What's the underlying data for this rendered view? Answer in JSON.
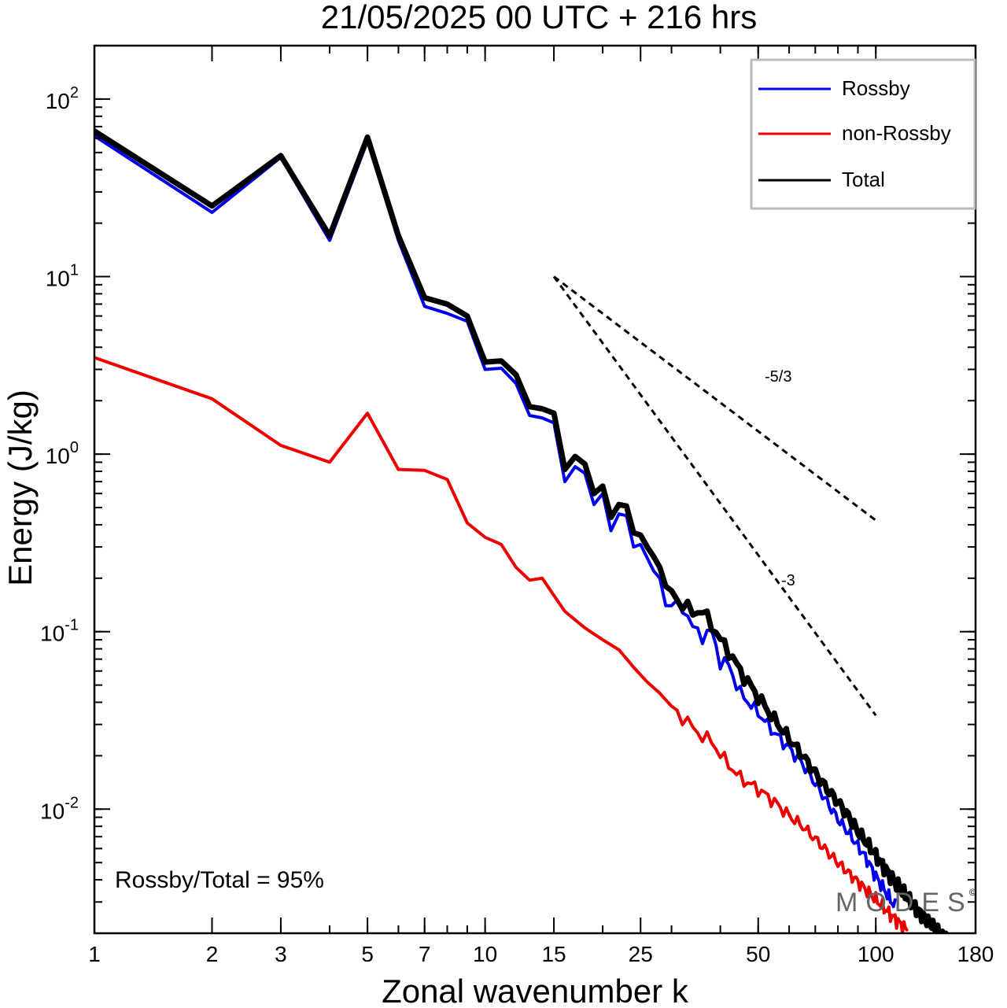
{
  "chart_data": {
    "type": "line",
    "title": "21/05/2025  00 UTC  + 216 hrs",
    "xlabel": "Zonal wavenumber k",
    "ylabel": "Energy (J/kg)",
    "xscale": "log",
    "yscale": "log",
    "xlim": [
      1,
      180
    ],
    "ylim": [
      0.002,
      200
    ],
    "xticks": [
      1,
      2,
      3,
      5,
      7,
      10,
      15,
      25,
      50,
      100,
      180
    ],
    "xtick_labels": [
      "1",
      "2",
      "3",
      "5",
      "7",
      "10",
      "15",
      "25",
      "50",
      "100",
      "180"
    ],
    "yticks": [
      {
        "value": 100,
        "base": "10",
        "exp": "2"
      },
      {
        "value": 10,
        "base": "10",
        "exp": "1"
      },
      {
        "value": 1,
        "base": "10",
        "exp": "0"
      },
      {
        "value": 0.1,
        "base": "10",
        "exp": "-1"
      },
      {
        "value": 0.01,
        "base": "10",
        "exp": "-2"
      }
    ],
    "legend_position": "top-right",
    "series": [
      {
        "name": "Rossby",
        "color": "#0000ee",
        "anchors": [
          [
            1,
            62
          ],
          [
            2,
            23
          ],
          [
            3,
            47
          ],
          [
            4,
            16
          ],
          [
            5,
            58
          ],
          [
            6,
            16
          ],
          [
            7,
            6.8
          ],
          [
            8,
            6.2
          ],
          [
            9,
            5.6
          ],
          [
            10,
            3.0
          ],
          [
            11,
            3.05
          ],
          [
            12,
            2.5
          ],
          [
            13,
            1.65
          ],
          [
            14,
            1.6
          ],
          [
            15,
            1.5
          ],
          [
            16,
            0.7
          ],
          [
            17,
            0.85
          ],
          [
            18,
            0.78
          ],
          [
            19,
            0.52
          ],
          [
            20,
            0.6
          ],
          [
            21,
            0.37
          ],
          [
            22,
            0.46
          ],
          [
            23,
            0.45
          ],
          [
            24,
            0.3
          ],
          [
            25,
            0.31
          ],
          [
            26,
            0.26
          ],
          [
            27,
            0.22
          ],
          [
            28,
            0.2
          ],
          [
            29,
            0.14
          ],
          [
            30,
            0.14
          ],
          [
            32,
            0.14
          ],
          [
            34,
            0.105
          ],
          [
            36,
            0.095
          ],
          [
            38,
            0.1
          ],
          [
            40,
            0.068
          ],
          [
            42,
            0.065
          ],
          [
            45,
            0.045
          ],
          [
            50,
            0.035
          ],
          [
            55,
            0.027
          ],
          [
            60,
            0.022
          ],
          [
            65,
            0.018
          ],
          [
            70,
            0.014
          ],
          [
            75,
            0.011
          ],
          [
            80,
            0.0088
          ],
          [
            85,
            0.0074
          ],
          [
            90,
            0.0062
          ],
          [
            95,
            0.0052
          ],
          [
            100,
            0.0042
          ],
          [
            110,
            0.003
          ],
          [
            120,
            0.0022
          ]
        ],
        "max_k": 112
      },
      {
        "name": "non-Rossby",
        "color": "#ee0000",
        "anchors": [
          [
            1,
            3.5
          ],
          [
            2,
            2.05
          ],
          [
            3,
            1.12
          ],
          [
            4,
            0.9
          ],
          [
            5,
            1.7
          ],
          [
            6,
            0.82
          ],
          [
            7,
            0.81
          ],
          [
            8,
            0.72
          ],
          [
            9,
            0.41
          ],
          [
            10,
            0.34
          ],
          [
            11,
            0.31
          ],
          [
            12,
            0.23
          ],
          [
            13,
            0.195
          ],
          [
            14,
            0.2
          ],
          [
            15,
            0.16
          ],
          [
            16,
            0.13
          ],
          [
            18,
            0.105
          ],
          [
            20,
            0.09
          ],
          [
            22,
            0.079
          ],
          [
            24,
            0.063
          ],
          [
            26,
            0.052
          ],
          [
            28,
            0.045
          ],
          [
            30,
            0.038
          ],
          [
            32,
            0.033
          ],
          [
            35,
            0.027
          ],
          [
            38,
            0.024
          ],
          [
            41,
            0.019
          ],
          [
            45,
            0.015
          ],
          [
            50,
            0.013
          ],
          [
            55,
            0.011
          ],
          [
            60,
            0.0092
          ],
          [
            65,
            0.008
          ],
          [
            70,
            0.0068
          ],
          [
            75,
            0.0058
          ],
          [
            80,
            0.005
          ],
          [
            85,
            0.0044
          ],
          [
            90,
            0.0039
          ],
          [
            100,
            0.0031
          ],
          [
            110,
            0.0025
          ],
          [
            120,
            0.0021
          ]
        ],
        "max_k": 120
      },
      {
        "name": "Total",
        "color": "#000000",
        "anchors": [
          [
            1,
            66
          ],
          [
            2,
            25
          ],
          [
            3,
            48
          ],
          [
            4,
            17
          ],
          [
            5,
            61
          ],
          [
            6,
            17
          ],
          [
            7,
            7.6
          ],
          [
            8,
            7.0
          ],
          [
            9,
            6.0
          ],
          [
            10,
            3.3
          ],
          [
            11,
            3.35
          ],
          [
            12,
            2.8
          ],
          [
            13,
            1.85
          ],
          [
            14,
            1.8
          ],
          [
            15,
            1.7
          ],
          [
            16,
            0.82
          ],
          [
            17,
            0.97
          ],
          [
            18,
            0.88
          ],
          [
            19,
            0.6
          ],
          [
            20,
            0.66
          ],
          [
            21,
            0.44
          ],
          [
            22,
            0.52
          ],
          [
            23,
            0.51
          ],
          [
            24,
            0.36
          ],
          [
            25,
            0.35
          ],
          [
            26,
            0.3
          ],
          [
            27,
            0.265
          ],
          [
            28,
            0.23
          ],
          [
            29,
            0.18
          ],
          [
            30,
            0.17
          ],
          [
            32,
            0.14
          ],
          [
            34,
            0.13
          ],
          [
            36,
            0.13
          ],
          [
            38,
            0.11
          ],
          [
            40,
            0.09
          ],
          [
            42,
            0.078
          ],
          [
            45,
            0.06
          ],
          [
            50,
            0.043
          ],
          [
            55,
            0.032
          ],
          [
            60,
            0.025
          ],
          [
            65,
            0.02
          ],
          [
            70,
            0.016
          ],
          [
            75,
            0.013
          ],
          [
            80,
            0.011
          ],
          [
            85,
            0.0092
          ],
          [
            90,
            0.0075
          ],
          [
            95,
            0.0064
          ],
          [
            100,
            0.0055
          ],
          [
            110,
            0.0041
          ],
          [
            120,
            0.0032
          ],
          [
            130,
            0.0026
          ],
          [
            140,
            0.0022
          ],
          [
            150,
            0.0019
          ]
        ],
        "max_k": 152
      }
    ],
    "reference_lines": [
      {
        "slope": "-5/3",
        "k_start": 15,
        "k_end": 100,
        "y_start": 10
      },
      {
        "slope": "-3",
        "k_start": 15,
        "k_end": 100,
        "y_start": 10
      }
    ],
    "annotation": "Rossby/Total = 95%",
    "watermark": "MODES"
  }
}
